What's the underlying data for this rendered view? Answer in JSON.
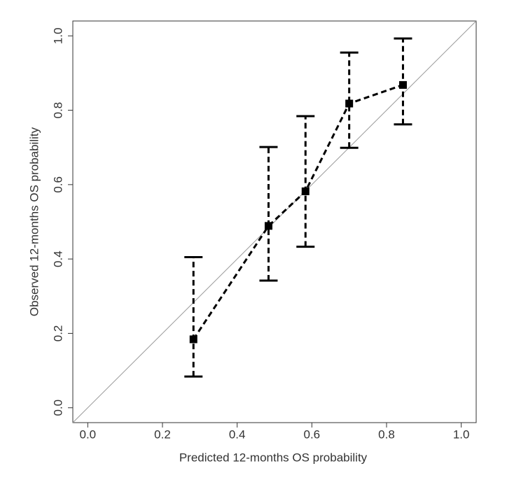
{
  "chart_data": {
    "type": "calibration",
    "xlabel": "Predicted 12-months OS probability",
    "ylabel": "Observed 12-months OS probability",
    "x": [
      0.283,
      0.484,
      0.583,
      0.7,
      0.844
    ],
    "y": [
      0.184,
      0.489,
      0.582,
      0.818,
      0.868
    ],
    "lower": [
      0.084,
      0.342,
      0.433,
      0.699,
      0.762
    ],
    "upper": [
      0.405,
      0.701,
      0.784,
      0.955,
      0.993
    ],
    "color": "#000000",
    "xlim": [
      -0.04,
      1.04
    ],
    "ylim": [
      -0.04,
      1.04
    ],
    "xticks": [
      {
        "value": 0,
        "label": "0.0"
      },
      0.2,
      0.4,
      0.6,
      0.8,
      {
        "value": 1,
        "label": "1.0"
      }
    ],
    "yticks": [
      {
        "value": 0,
        "label": "0.0"
      },
      0.2,
      0.4,
      0.6,
      0.8,
      {
        "value": 1,
        "label": "1.0"
      }
    ],
    "reference_line": true
  }
}
